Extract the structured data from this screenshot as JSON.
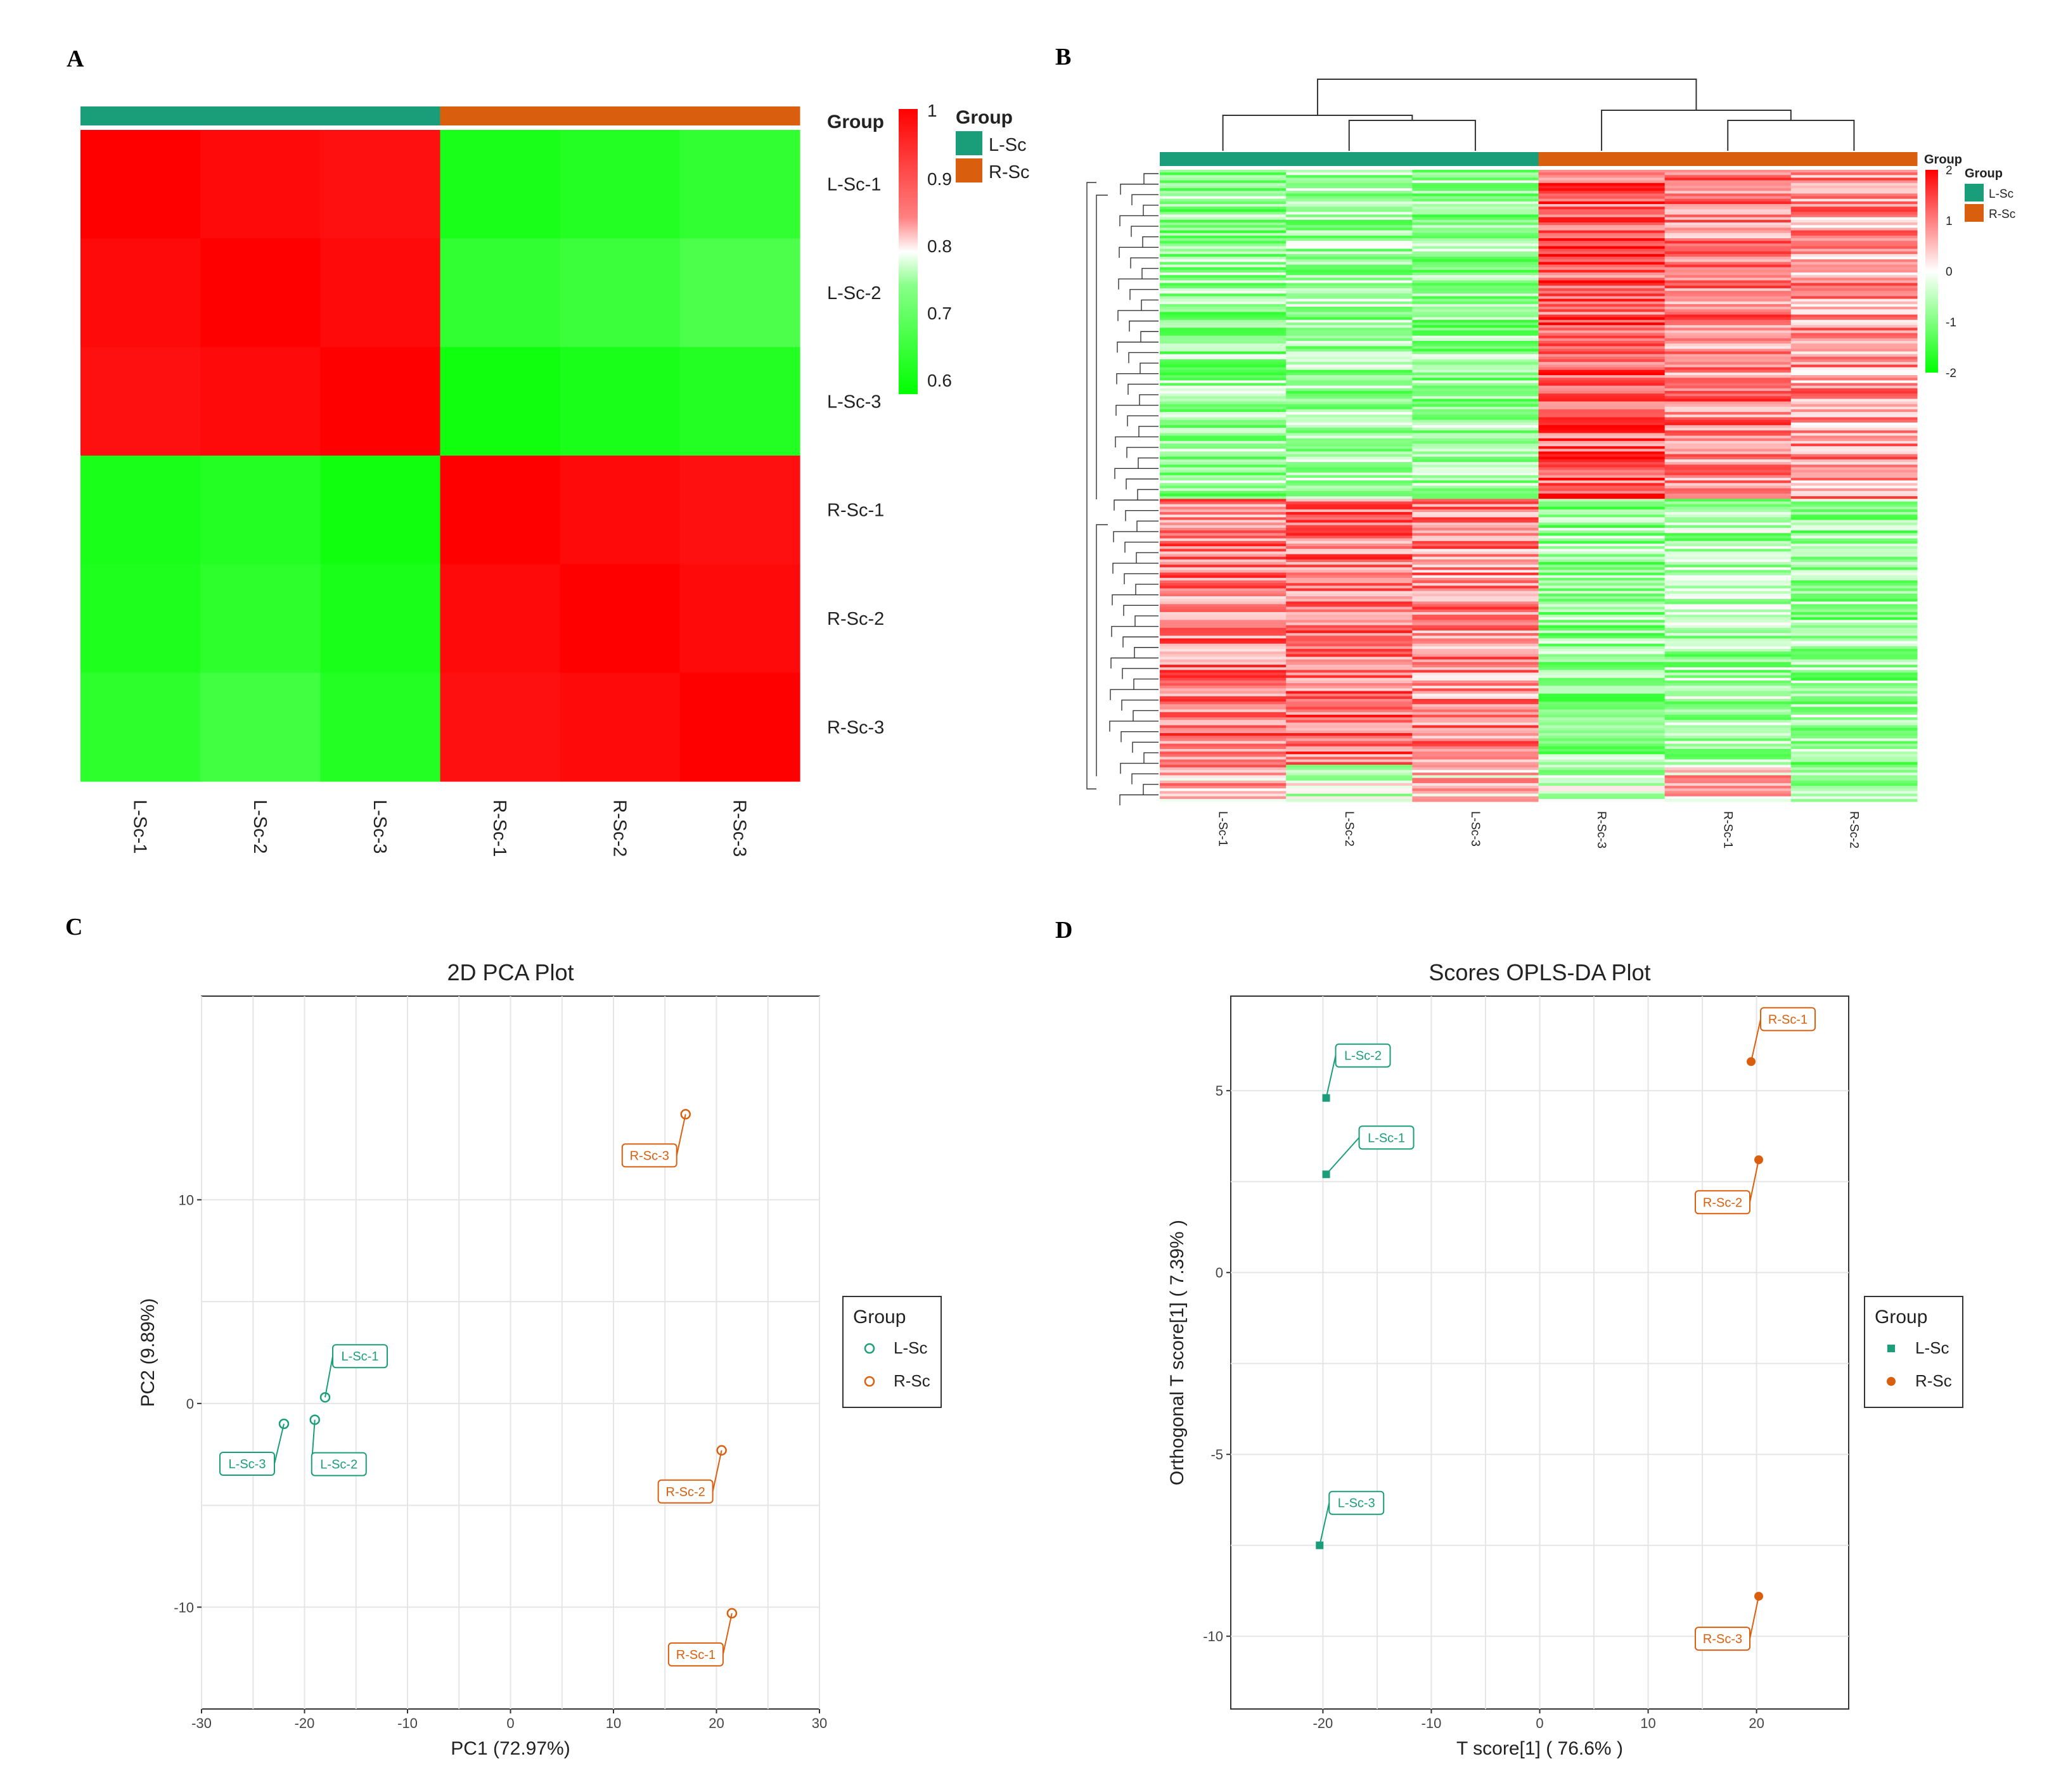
{
  "panel_labels": {
    "a": "A",
    "b": "B",
    "c": "C",
    "d": "D"
  },
  "colors": {
    "l_sc": "#1a9e7a",
    "r_sc": "#d95f0e",
    "hi": "#ff0000",
    "mid": "#ffffff",
    "lo": "#00ff00",
    "grid": "#e5e5e5"
  },
  "chart_data": [
    {
      "type": "heatmap",
      "panel": "A",
      "rows": [
        "L-Sc-1",
        "L-Sc-2",
        "L-Sc-3",
        "R-Sc-1",
        "R-Sc-2",
        "R-Sc-3"
      ],
      "columns": [
        "L-Sc-1",
        "L-Sc-2",
        "L-Sc-3",
        "R-Sc-1",
        "R-Sc-2",
        "R-Sc-3"
      ],
      "column_groups": [
        "L-Sc",
        "L-Sc",
        "L-Sc",
        "R-Sc",
        "R-Sc",
        "R-Sc"
      ],
      "values": [
        [
          1.0,
          0.98,
          0.97,
          0.6,
          0.62,
          0.65
        ],
        [
          0.98,
          1.0,
          0.98,
          0.65,
          0.67,
          0.7
        ],
        [
          0.97,
          0.98,
          1.0,
          0.58,
          0.6,
          0.62
        ],
        [
          0.6,
          0.62,
          0.58,
          1.0,
          0.98,
          0.97
        ],
        [
          0.61,
          0.64,
          0.6,
          0.98,
          1.0,
          0.98
        ],
        [
          0.64,
          0.68,
          0.62,
          0.97,
          0.98,
          1.0
        ]
      ],
      "scale": {
        "range": [
          0.55,
          1.0
        ],
        "ticks": [
          "1",
          "0.9",
          "0.8",
          "0.7",
          "0.6"
        ]
      },
      "legend": {
        "title": "Group",
        "entries": [
          "L-Sc",
          "R-Sc"
        ]
      }
    },
    {
      "type": "heatmap",
      "panel": "B",
      "columns": [
        "L-Sc-1",
        "L-Sc-2",
        "L-Sc-3",
        "R-Sc-3",
        "R-Sc-1",
        "R-Sc-2"
      ],
      "column_groups": [
        "L-Sc",
        "L-Sc",
        "L-Sc",
        "R-Sc",
        "R-Sc",
        "R-Sc"
      ],
      "row_blocks": [
        {
          "share": 0.52,
          "values": [
            -0.8,
            -0.7,
            -0.8,
            1.3,
            1.0,
            0.8
          ]
        },
        {
          "share": 0.42,
          "values": [
            1.0,
            1.1,
            0.9,
            -0.8,
            -0.7,
            -0.8
          ]
        },
        {
          "share": 0.06,
          "values": [
            0.6,
            -0.3,
            0.4,
            -0.4,
            0.5,
            -0.6
          ]
        }
      ],
      "scale": {
        "range": [
          -2,
          2
        ],
        "ticks": [
          "2",
          "1",
          "0",
          "-1",
          "-2"
        ]
      },
      "legend": {
        "title": "Group",
        "entries": [
          "L-Sc",
          "R-Sc"
        ]
      }
    },
    {
      "type": "scatter",
      "panel": "C",
      "title": "2D PCA Plot",
      "xlabel": "PC1 (72.97%)",
      "ylabel": "PC2 (9.89%)",
      "xlim": [
        -30,
        30
      ],
      "ylim": [
        -15,
        20
      ],
      "xticks": [
        "-30",
        "-20",
        "-10",
        "0",
        "10",
        "20",
        "30"
      ],
      "yticks": [
        "10",
        "0",
        "-10"
      ],
      "series": [
        {
          "name": "L-Sc",
          "marker": "open-circle",
          "points": [
            {
              "label": "L-Sc-1",
              "x": -18,
              "y": 0.3
            },
            {
              "label": "L-Sc-2",
              "x": -19,
              "y": -0.8
            },
            {
              "label": "L-Sc-3",
              "x": -22,
              "y": -1.0
            }
          ]
        },
        {
          "name": "R-Sc",
          "marker": "open-circle",
          "points": [
            {
              "label": "R-Sc-1",
              "x": 21.5,
              "y": -10.3
            },
            {
              "label": "R-Sc-2",
              "x": 20.5,
              "y": -2.3
            },
            {
              "label": "R-Sc-3",
              "x": 17,
              "y": 14.2
            }
          ]
        }
      ],
      "legend": {
        "title": "Group",
        "entries": [
          "L-Sc",
          "R-Sc"
        ],
        "position": "right"
      }
    },
    {
      "type": "scatter",
      "panel": "D",
      "title": "Scores OPLS-DA Plot",
      "xlabel": "T score[1] ( 76.6% )",
      "ylabel": "Orthogonal T score[1] ( 7.39% )",
      "xlim": [
        -28.5,
        28.5
      ],
      "ylim": [
        -12,
        7.6
      ],
      "xticks": [
        "-20",
        "-10",
        "0",
        "10",
        "20"
      ],
      "yticks": [
        "5",
        "0",
        "-5",
        "-10"
      ],
      "series": [
        {
          "name": "L-Sc",
          "marker": "filled-square",
          "points": [
            {
              "label": "L-Sc-1",
              "x": -19.7,
              "y": 2.7
            },
            {
              "label": "L-Sc-2",
              "x": -19.7,
              "y": 4.8
            },
            {
              "label": "L-Sc-3",
              "x": -20.3,
              "y": -7.5
            }
          ]
        },
        {
          "name": "R-Sc",
          "marker": "filled-circle",
          "points": [
            {
              "label": "R-Sc-1",
              "x": 19.5,
              "y": 5.8
            },
            {
              "label": "R-Sc-2",
              "x": 20.2,
              "y": 3.1
            },
            {
              "label": "R-Sc-3",
              "x": 20.2,
              "y": -8.9
            }
          ]
        }
      ],
      "legend": {
        "title": "Group",
        "entries": [
          "L-Sc",
          "R-Sc"
        ],
        "position": "right"
      }
    }
  ]
}
